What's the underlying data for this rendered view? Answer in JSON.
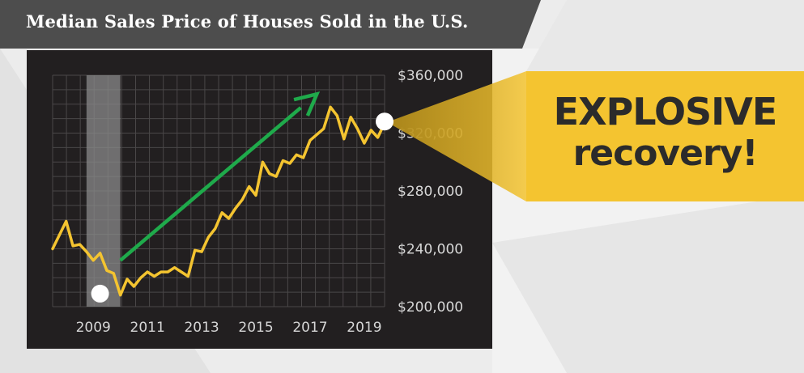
{
  "title": "Median Sales Price of Houses Sold in the U.S.",
  "callout": {
    "line1": "EXPLOSIVE",
    "line2": "recovery!"
  },
  "colors": {
    "line": "#f4c430",
    "arrow": "#1faa4b",
    "panel": "#221f20",
    "callout": "#f4c430",
    "recession": "#8a8a8a",
    "banner": "#4d4d4d"
  },
  "chart_data": {
    "type": "line",
    "title": "Median Sales Price of Houses Sold in the U.S.",
    "xlabel": "",
    "ylabel": "",
    "xlim": [
      2007.5,
      2019.75
    ],
    "ylim": [
      200000,
      360000
    ],
    "y_ticks": [
      200000,
      240000,
      280000,
      320000,
      360000
    ],
    "y_tick_labels": [
      "$200,000",
      "$240,000",
      "$280,000",
      "$320,000",
      "$360,000"
    ],
    "x_ticks": [
      2009,
      2011,
      2013,
      2015,
      2017,
      2019
    ],
    "x_tick_labels": [
      "2009",
      "2011",
      "2013",
      "2015",
      "2017",
      "2019"
    ],
    "grid": true,
    "y_axis_position": "right",
    "shaded_region": {
      "label": "recession",
      "x0": 2008.75,
      "x1": 2010.0
    },
    "series": [
      {
        "x": [
          2007.5,
          2008.0,
          2008.25,
          2008.5,
          2008.75,
          2009.0,
          2009.25,
          2009.5,
          2009.75,
          2010.0,
          2010.25,
          2010.5,
          2010.75,
          2011.0,
          2011.25,
          2011.5,
          2011.75,
          2012.0,
          2012.25,
          2012.5,
          2012.75,
          2013.0,
          2013.25,
          2013.5,
          2013.75,
          2014.0,
          2014.25,
          2014.5,
          2014.75,
          2015.0,
          2015.25,
          2015.5,
          2015.75,
          2016.0,
          2016.25,
          2016.5,
          2016.75,
          2017.0,
          2017.25,
          2017.5,
          2017.75,
          2018.0,
          2018.25,
          2018.5,
          2018.75,
          2019.0,
          2019.25,
          2019.5,
          2019.75
        ],
        "values": [
          240000,
          259000,
          242000,
          243000,
          238000,
          232000,
          237000,
          225000,
          223000,
          208000,
          219000,
          214000,
          220000,
          224000,
          221000,
          224000,
          224000,
          227000,
          224000,
          221000,
          239000,
          238000,
          248000,
          254000,
          265000,
          261000,
          268000,
          274000,
          283000,
          277000,
          300000,
          292000,
          290000,
          301000,
          299000,
          305000,
          303000,
          315000,
          319000,
          323000,
          338000,
          332000,
          316000,
          331000,
          323000,
          313000,
          322000,
          317000,
          327000
        ]
      }
    ],
    "annotations": [
      {
        "type": "marker",
        "x": 2009.25,
        "y": 209000
      },
      {
        "type": "marker",
        "x": 2019.75,
        "y": 328000
      },
      {
        "type": "arrow",
        "from": [
          2010.0,
          232000
        ],
        "to": [
          2017.25,
          347000
        ]
      }
    ]
  }
}
